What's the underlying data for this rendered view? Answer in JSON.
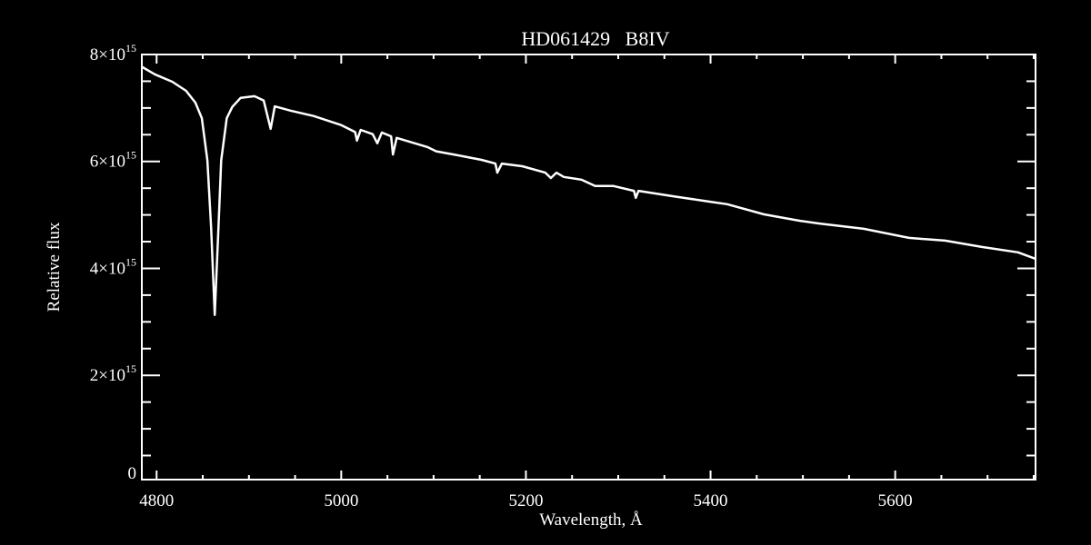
{
  "chart_data": {
    "type": "line",
    "title": "HD061429   B8IV",
    "xlabel": "Wavelength, Å",
    "ylabel": "Relative flux",
    "xlim": [
      4784,
      5752
    ],
    "ylim": [
      50000000000000.0,
      8000000000000000.0
    ],
    "x_ticks": [
      {
        "value": 4800,
        "label": "4800"
      },
      {
        "value": 5000,
        "label": "5000"
      },
      {
        "value": 5200,
        "label": "5200"
      },
      {
        "value": 5400,
        "label": "5400"
      },
      {
        "value": 5600,
        "label": "5600"
      }
    ],
    "x_minor_step": 50,
    "y_ticks": [
      {
        "value": 0,
        "mant": "0",
        "exp": ""
      },
      {
        "value": 2000000000000000.0,
        "mant": "2×10",
        "exp": "15"
      },
      {
        "value": 4000000000000000.0,
        "mant": "4×10",
        "exp": "15"
      },
      {
        "value": 6000000000000000.0,
        "mant": "6×10",
        "exp": "15"
      },
      {
        "value": 8000000000000000.0,
        "mant": "8×10",
        "exp": "15"
      }
    ],
    "y_minor_step": 500000000000000.0,
    "grid": false,
    "background": "#000000",
    "line_color": "#ffffff",
    "series": [
      {
        "x": [
          4784,
          4798,
          4817,
          4832,
          4842,
          4849,
          4855,
          4859,
          4863,
          4867,
          4870,
          4876,
          4882,
          4891,
          4906,
          4916,
          4923.5,
          4928,
          4945,
          4970,
          5000,
          5015,
          5017,
          5021,
          5034,
          5039,
          5044,
          5054,
          5056,
          5060,
          5093,
          5103,
          5122,
          5152,
          5167,
          5169,
          5174,
          5196,
          5221,
          5227,
          5233,
          5241,
          5260,
          5275,
          5295,
          5317,
          5319,
          5322,
          5359,
          5398,
          5418,
          5458,
          5497,
          5517,
          5566,
          5615,
          5654,
          5694,
          5733,
          5752
        ],
        "y": [
          7770000000000000.0,
          7630000000000000.0,
          7490000000000000.0,
          7320000000000000.0,
          7100000000000000.0,
          6810000000000000.0,
          6020000000000000.0,
          4770000000000000.0,
          3130000000000000.0,
          4770000000000000.0,
          6020000000000000.0,
          6810000000000000.0,
          7020000000000000.0,
          7190000000000000.0,
          7220000000000000.0,
          7140000000000000.0,
          6610000000000000.0,
          7030000000000000.0,
          6950000000000000.0,
          6850000000000000.0,
          6680000000000000.0,
          6550000000000000.0,
          6390000000000000.0,
          6590000000000000.0,
          6510000000000000.0,
          6340000000000000.0,
          6540000000000000.0,
          6470000000000000.0,
          6130000000000000.0,
          6440000000000000.0,
          6270000000000000.0,
          6190000000000000.0,
          6130000000000000.0,
          6030000000000000.0,
          5960000000000000.0,
          5790000000000000.0,
          5960000000000000.0,
          5910000000000000.0,
          5790000000000000.0,
          5690000000000000.0,
          5790000000000000.0,
          5710000000000000.0,
          5660000000000000.0,
          5540000000000000.0,
          5540000000000000.0,
          5450000000000000.0,
          5320000000000000.0,
          5450000000000000.0,
          5350000000000000.0,
          5250000000000000.0,
          5200000000000000.0,
          5010000000000000.0,
          4890000000000000.0,
          4840000000000000.0,
          4740000000000000.0,
          4570000000000000.0,
          4520000000000000.0,
          4400000000000000.0,
          4300000000000000.0,
          4180000000000000.0
        ]
      }
    ]
  }
}
